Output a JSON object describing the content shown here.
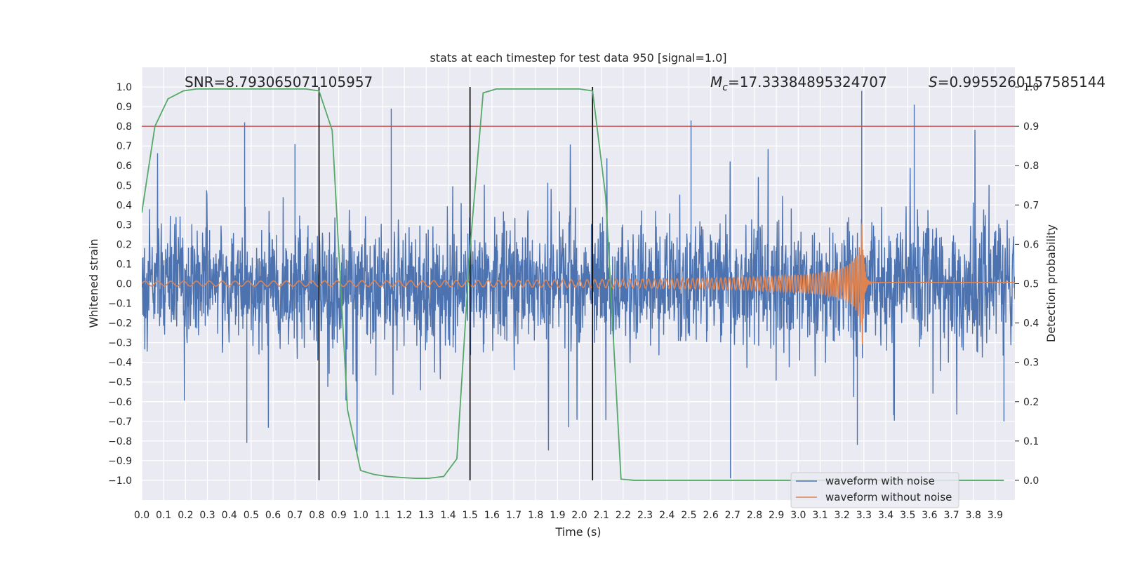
{
  "chart_data": {
    "type": "line",
    "title": "stats at each timestep for test data 950 [signal=1.0]",
    "xlabel": "Time (s)",
    "ylabel_left": "Whitened strain",
    "ylabel_right": "Detection probability",
    "xlim": [
      0.0,
      3.99
    ],
    "ylim_left": [
      -1.1,
      1.1
    ],
    "ylim_right": [
      -0.05,
      1.05
    ],
    "x_ticks": [
      "0.0",
      "0.1",
      "0.2",
      "0.3",
      "0.4",
      "0.5",
      "0.6",
      "0.7",
      "0.8",
      "0.9",
      "1.0",
      "1.1",
      "1.2",
      "1.3",
      "1.4",
      "1.5",
      "1.6",
      "1.7",
      "1.8",
      "1.9",
      "2.0",
      "2.1",
      "2.2",
      "2.3",
      "2.4",
      "2.5",
      "2.6",
      "2.7",
      "2.8",
      "2.9",
      "3.0",
      "3.1",
      "3.2",
      "3.3",
      "3.4",
      "3.5",
      "3.6",
      "3.7",
      "3.8",
      "3.9"
    ],
    "y_ticks_left": [
      "1.0",
      "0.9",
      "0.8",
      "0.7",
      "0.6",
      "0.5",
      "0.4",
      "0.3",
      "0.2",
      "0.1",
      "0.0",
      "−0.1",
      "−0.2",
      "−0.3",
      "−0.4",
      "−0.5",
      "−0.6",
      "−0.7",
      "−0.8",
      "−0.9",
      "−1.0"
    ],
    "y_ticks_right": [
      "1.0",
      "0.9",
      "0.8",
      "0.7",
      "0.6",
      "0.5",
      "0.4",
      "0.3",
      "0.2",
      "0.1",
      "0.0"
    ],
    "grid": true,
    "legend_position": "bottom-right",
    "annotations": {
      "snr": "SNR=8.793065071105957",
      "mc_symbol": "M",
      "mc_sub": "c",
      "mc_value": "=17.33384895324707",
      "s_symbol": "S",
      "s_value": "=0.9955260157585144"
    },
    "series": [
      {
        "name": "waveform with noise",
        "axis": "left",
        "color": "#4c72b0",
        "description_points": {
          "x_range": [
            0.0,
            3.99
          ],
          "envelope_low": -0.55,
          "envelope_high": 0.55,
          "spikes": [
            [
              0.47,
              0.82
            ],
            [
              0.48,
              -0.81
            ],
            [
              0.7,
              0.71
            ],
            [
              1.14,
              0.89
            ],
            [
              2.51,
              0.83
            ],
            [
              2.69,
              -0.99
            ],
            [
              3.27,
              -0.82
            ],
            [
              3.29,
              0.98
            ],
            [
              3.53,
              0.91
            ],
            [
              3.94,
              -0.7
            ]
          ]
        }
      },
      {
        "name": "waveform without noise",
        "axis": "left",
        "color": "#dd8452",
        "chirp": {
          "x_start": 0.0,
          "x_merger": 3.29,
          "x_end": 3.99,
          "start_amplitude": 0.012,
          "peak_amplitude": 0.45,
          "start_freq_hz": 17,
          "end_freq_hz": 95
        }
      },
      {
        "name": "",
        "axis": "right",
        "color": "#55a868",
        "x": [
          0.0,
          0.06,
          0.12,
          0.19,
          0.25,
          0.31,
          0.38,
          0.44,
          0.5,
          0.56,
          0.63,
          0.69,
          0.75,
          0.81,
          0.87,
          0.94,
          1.0,
          1.06,
          1.12,
          1.19,
          1.25,
          1.31,
          1.38,
          1.44,
          1.5,
          1.56,
          1.62,
          1.69,
          1.75,
          1.81,
          1.87,
          1.94,
          2.0,
          2.06,
          2.12,
          2.19,
          2.25,
          2.31,
          2.38,
          2.44,
          2.5,
          2.56,
          2.62,
          2.69,
          2.75,
          2.81,
          2.87,
          2.94,
          3.0,
          3.06,
          3.12,
          3.19,
          3.25,
          3.31,
          3.38,
          3.44,
          3.5,
          3.56,
          3.62,
          3.69,
          3.75,
          3.81,
          3.87,
          3.94
        ],
        "y": [
          0.68,
          0.9,
          0.97,
          0.99,
          0.995,
          0.995,
          0.995,
          0.995,
          0.995,
          0.995,
          0.995,
          0.995,
          0.995,
          0.99,
          0.89,
          0.18,
          0.025,
          0.015,
          0.01,
          0.007,
          0.005,
          0.005,
          0.01,
          0.055,
          0.59,
          0.985,
          0.995,
          0.995,
          0.995,
          0.995,
          0.995,
          0.995,
          0.995,
          0.99,
          0.72,
          0.003,
          0.0,
          0.0,
          0.0,
          0.0,
          0.0,
          0.0,
          0.0,
          0.0,
          0.0,
          0.0,
          0.0,
          0.0,
          0.0,
          0.0,
          0.0,
          0.0,
          0.0,
          0.0,
          0.0,
          0.0,
          0.0,
          0.0,
          0.0,
          0.0,
          0.0,
          0.0,
          0.0,
          0.0
        ]
      }
    ],
    "threshold_line": {
      "axis": "right",
      "value": 0.9,
      "color": "#c44e52"
    },
    "vertical_markers": [
      0.81,
      1.5,
      2.06
    ]
  }
}
